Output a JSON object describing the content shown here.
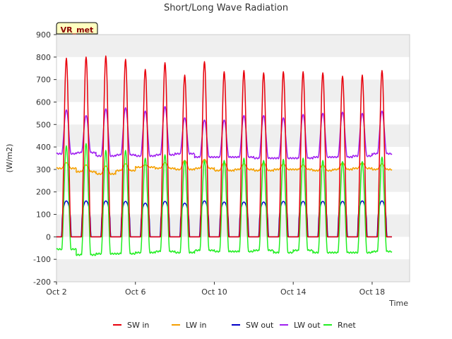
{
  "chart_data": {
    "type": "line",
    "title": "Short/Long Wave Radiation",
    "xlabel": "Time",
    "ylabel": "(W/m2)",
    "badge": "VR_met",
    "ylim": [
      -200,
      900
    ],
    "yticks": [
      -200,
      -100,
      0,
      100,
      200,
      300,
      400,
      500,
      600,
      700,
      800,
      900
    ],
    "xlim": [
      2,
      19.9
    ],
    "xticks": [
      {
        "value": 2,
        "label": "Oct 2"
      },
      {
        "value": 6,
        "label": "Oct 6"
      },
      {
        "value": 10,
        "label": "Oct 10"
      },
      {
        "value": 14,
        "label": "Oct 14"
      },
      {
        "value": 18,
        "label": "Oct 18"
      }
    ],
    "day_starts": [
      2,
      3,
      4,
      5,
      6,
      7,
      8,
      9,
      10,
      11,
      12,
      13,
      14,
      15,
      16,
      17,
      18
    ],
    "sampling": "4 points per day (06:00, 12:00, 18:00, 24:00 local), peaks near midday",
    "series": [
      {
        "name": "SW in",
        "color": "#e8000b",
        "night_value": 0,
        "daily_peak": [
          795,
          800,
          805,
          790,
          745,
          775,
          720,
          780,
          735,
          740,
          730,
          735,
          735,
          730,
          715,
          720,
          740
        ]
      },
      {
        "name": "LW in",
        "color": "#f5a000",
        "night_value": [
          305,
          290,
          280,
          295,
          310,
          305,
          300,
          305,
          295,
          300,
          295,
          300,
          300,
          295,
          300,
          305,
          300
        ],
        "daily_peak": [
          330,
          320,
          315,
          325,
          320,
          330,
          340,
          345,
          330,
          325,
          330,
          325,
          320,
          320,
          330,
          330,
          325
        ]
      },
      {
        "name": "SW out",
        "color": "#0000c8",
        "night_value": 0,
        "daily_peak": [
          160,
          160,
          160,
          158,
          150,
          158,
          150,
          160,
          155,
          155,
          155,
          158,
          158,
          158,
          158,
          160,
          160
        ]
      },
      {
        "name": "LW out",
        "color": "#a020f0",
        "night_value": [
          370,
          375,
          360,
          365,
          360,
          365,
          370,
          355,
          355,
          355,
          350,
          350,
          350,
          355,
          355,
          360,
          370
        ],
        "daily_peak": [
          565,
          540,
          570,
          575,
          560,
          580,
          530,
          520,
          520,
          540,
          540,
          530,
          545,
          550,
          555,
          550,
          560
        ]
      },
      {
        "name": "Rnet",
        "color": "#22ee22",
        "night_value": [
          -55,
          -80,
          -75,
          -75,
          -70,
          -65,
          -70,
          -60,
          -65,
          -65,
          -60,
          -70,
          -60,
          -70,
          -70,
          -70,
          -65
        ],
        "daily_peak": [
          405,
          415,
          385,
          385,
          350,
          365,
          340,
          340,
          340,
          350,
          340,
          345,
          350,
          340,
          335,
          335,
          355
        ]
      }
    ],
    "legend_position": "bottom-center",
    "grid": "horizontal bands"
  }
}
